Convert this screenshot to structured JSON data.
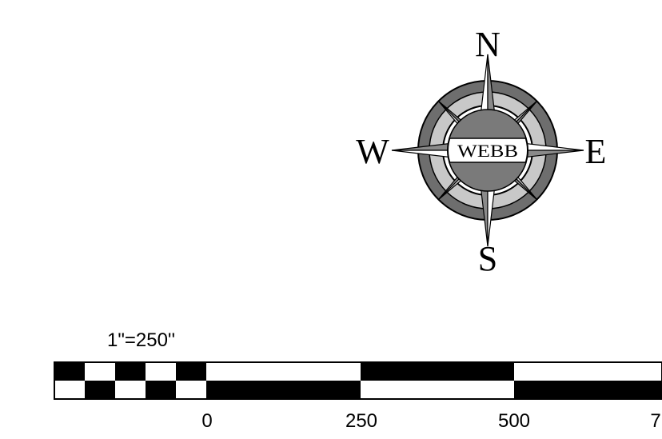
{
  "compass": {
    "north": "N",
    "south": "S",
    "east": "E",
    "west": "W",
    "center_label": "WEBB",
    "colors": {
      "ring": "#6e6e6e",
      "ring_light": "#c8c8c8",
      "band": "#7a7a7a",
      "point_light": "#d4d4d4",
      "point_dark": "#8a8a8a"
    }
  },
  "scale": {
    "ratio_label": "1\"=250''",
    "ticks": [
      "0",
      "250",
      "500",
      "7"
    ]
  }
}
